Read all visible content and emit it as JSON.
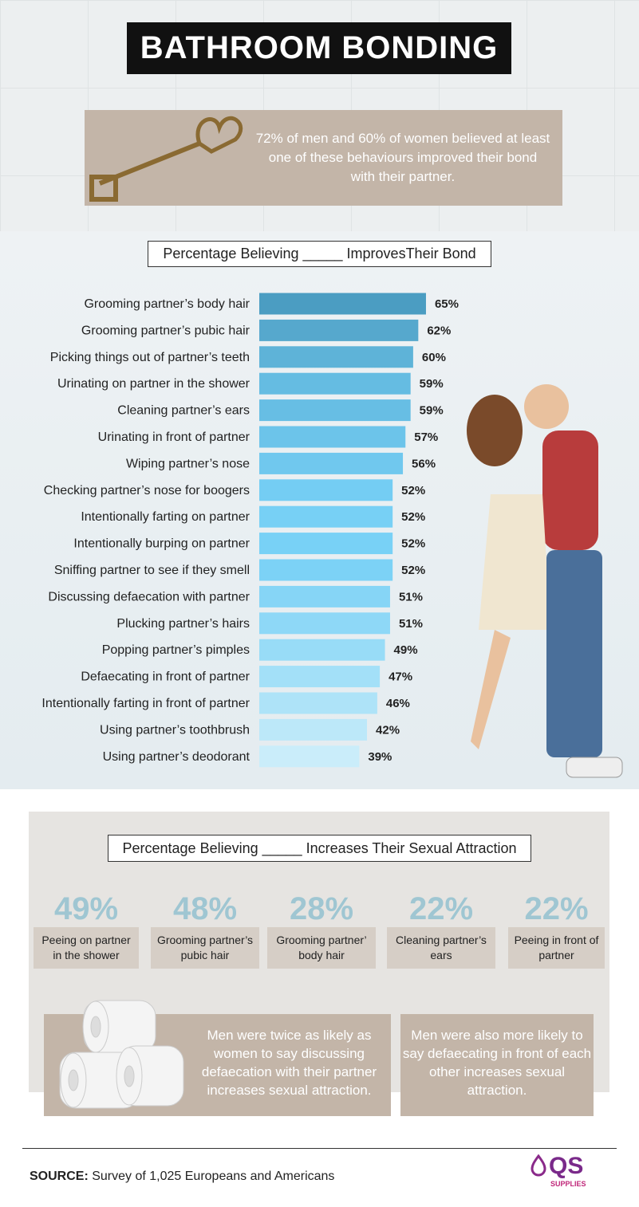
{
  "header": {
    "title": "BATHROOM BONDING",
    "intro": "72% of men and 60% of women believed at least one of these behaviours improved their bond with their partner."
  },
  "chart_data": {
    "type": "bar",
    "orientation": "horizontal",
    "title": "Percentage Believing _____ ImprovesTheir Bond",
    "categories": [
      "Grooming partner’s body hair",
      "Grooming partner’s pubic hair",
      "Picking things out of partner’s teeth",
      "Urinating on partner in the shower",
      "Cleaning partner’s ears",
      "Urinating in front of partner",
      "Wiping partner’s nose",
      "Checking partner’s nose for boogers",
      "Intentionally farting on partner",
      "Intentionally burping on partner",
      "Sniffing partner to see if they smell",
      "Discussing defaecation with partner",
      "Plucking partner’s hairs",
      "Popping partner’s pimples",
      "Defaecating in front of partner",
      "Intentionally farting in front of partner",
      "Using partner’s toothbrush",
      "Using partner’s deodorant"
    ],
    "values": [
      65,
      62,
      60,
      59,
      59,
      57,
      56,
      52,
      52,
      52,
      52,
      51,
      51,
      49,
      47,
      46,
      42,
      39
    ],
    "value_labels": [
      "65%",
      "62%",
      "60%",
      "59%",
      "59%",
      "57%",
      "56%",
      "52%",
      "52%",
      "52%",
      "52%",
      "51%",
      "51%",
      "49%",
      "47%",
      "46%",
      "42%",
      "39%"
    ],
    "colors": [
      "#4b9dc2",
      "#56a8cd",
      "#5eb3d8",
      "#65bce2",
      "#67bee4",
      "#6cc4ea",
      "#70c8ee",
      "#74cdf3",
      "#77d0f5",
      "#78d1f6",
      "#7cd2f6",
      "#86d5f6",
      "#8ed8f7",
      "#98dcf7",
      "#a3e0f8",
      "#aee3f8",
      "#bce8f9",
      "#caedfa"
    ]
  },
  "attraction": {
    "title": "Percentage Believing _____ Increases Their Sexual Attraction",
    "items": [
      {
        "value": "49%",
        "label": "Peeing on partner in the shower"
      },
      {
        "value": "48%",
        "label": "Grooming partner’s pubic hair"
      },
      {
        "value": "28%",
        "label": "Grooming partner’ body hair"
      },
      {
        "value": "22%",
        "label": "Cleaning partner’s ears"
      },
      {
        "value": "22%",
        "label": "Peeing in front of partner"
      }
    ]
  },
  "notes": [
    "Men were twice as likely as women to say discussing defaecation with their partner increases sexual attraction.",
    "Men were also more likely to say defaecating in front of each other increases sexual attraction."
  ],
  "source": {
    "label": "SOURCE:",
    "text": "Survey of 1,025 Europeans and Americans"
  },
  "logo": {
    "text": "QS",
    "sub": "SUPPLIES"
  }
}
